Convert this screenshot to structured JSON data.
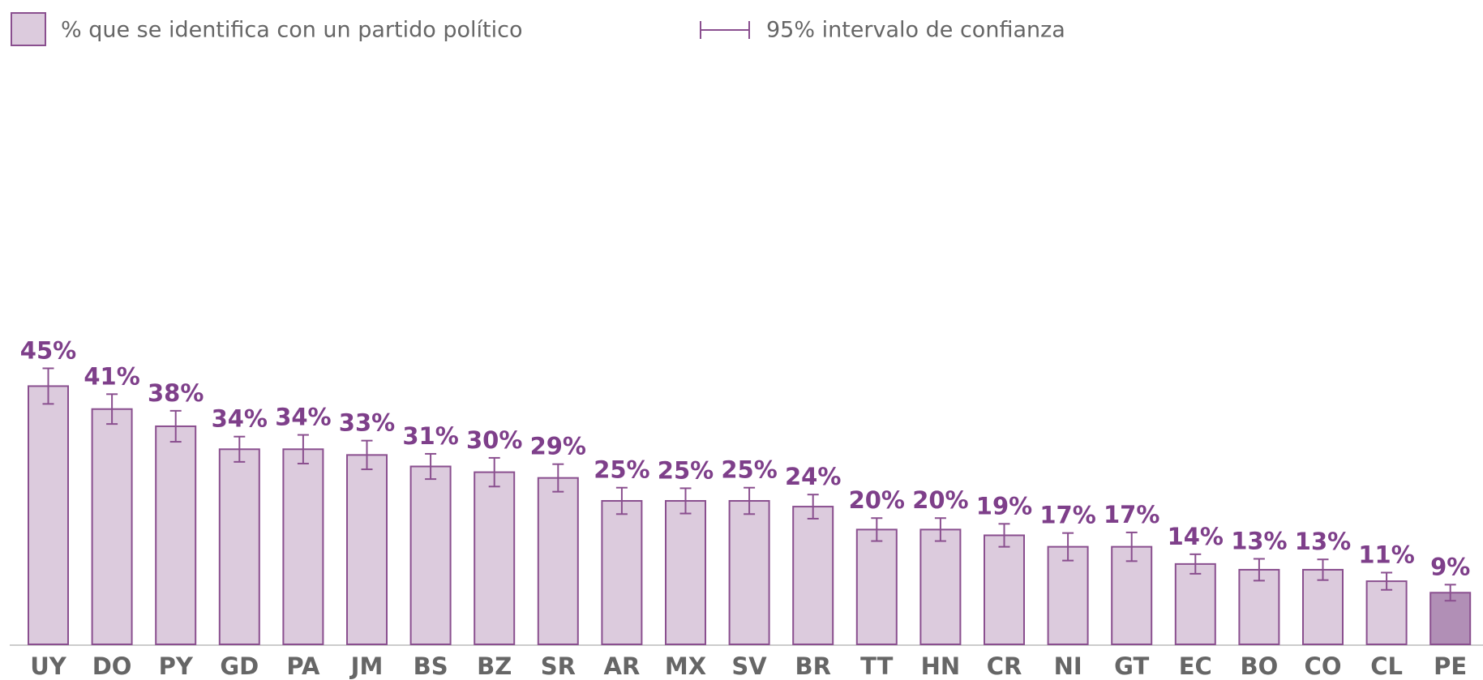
{
  "chart_data": {
    "type": "bar",
    "legend": {
      "bar": "% que se identifica con un partido político",
      "interval": "95% intervalo de confianza"
    },
    "categories": [
      "UY",
      "DO",
      "PY",
      "GD",
      "PA",
      "JM",
      "BS",
      "BZ",
      "SR",
      "AR",
      "MX",
      "SV",
      "BR",
      "TT",
      "HN",
      "CR",
      "NI",
      "GT",
      "EC",
      "BO",
      "CO",
      "CL",
      "PE"
    ],
    "values": [
      45,
      41,
      38,
      34,
      34,
      33,
      31,
      30,
      29,
      25,
      25,
      25,
      24,
      20,
      20,
      19,
      17,
      17,
      14,
      13,
      13,
      11,
      9
    ],
    "value_labels": [
      "45%",
      "41%",
      "38%",
      "34%",
      "34%",
      "33%",
      "31%",
      "30%",
      "29%",
      "25%",
      "25%",
      "25%",
      "24%",
      "20%",
      "20%",
      "19%",
      "17%",
      "17%",
      "14%",
      "13%",
      "13%",
      "11%",
      "9%"
    ],
    "errors": [
      3.1,
      2.6,
      2.7,
      2.2,
      2.5,
      2.5,
      2.2,
      2.5,
      2.4,
      2.3,
      2.2,
      2.3,
      2.1,
      2.0,
      2.0,
      2.0,
      2.4,
      2.5,
      1.7,
      1.9,
      1.8,
      1.5,
      1.4
    ],
    "colors": [
      "#dccbdd",
      "#dccbdd",
      "#dccbdd",
      "#dccbdd",
      "#dccbdd",
      "#dccbdd",
      "#dccbdd",
      "#dccbdd",
      "#dccbdd",
      "#dccbdd",
      "#dccbdd",
      "#dccbdd",
      "#dccbdd",
      "#dccbdd",
      "#dccbdd",
      "#dccbdd",
      "#dccbdd",
      "#dccbdd",
      "#dccbdd",
      "#dccbdd",
      "#dccbdd",
      "#dccbdd",
      "#b18fb6"
    ],
    "stroke_color": "#8a4f8f"
  }
}
